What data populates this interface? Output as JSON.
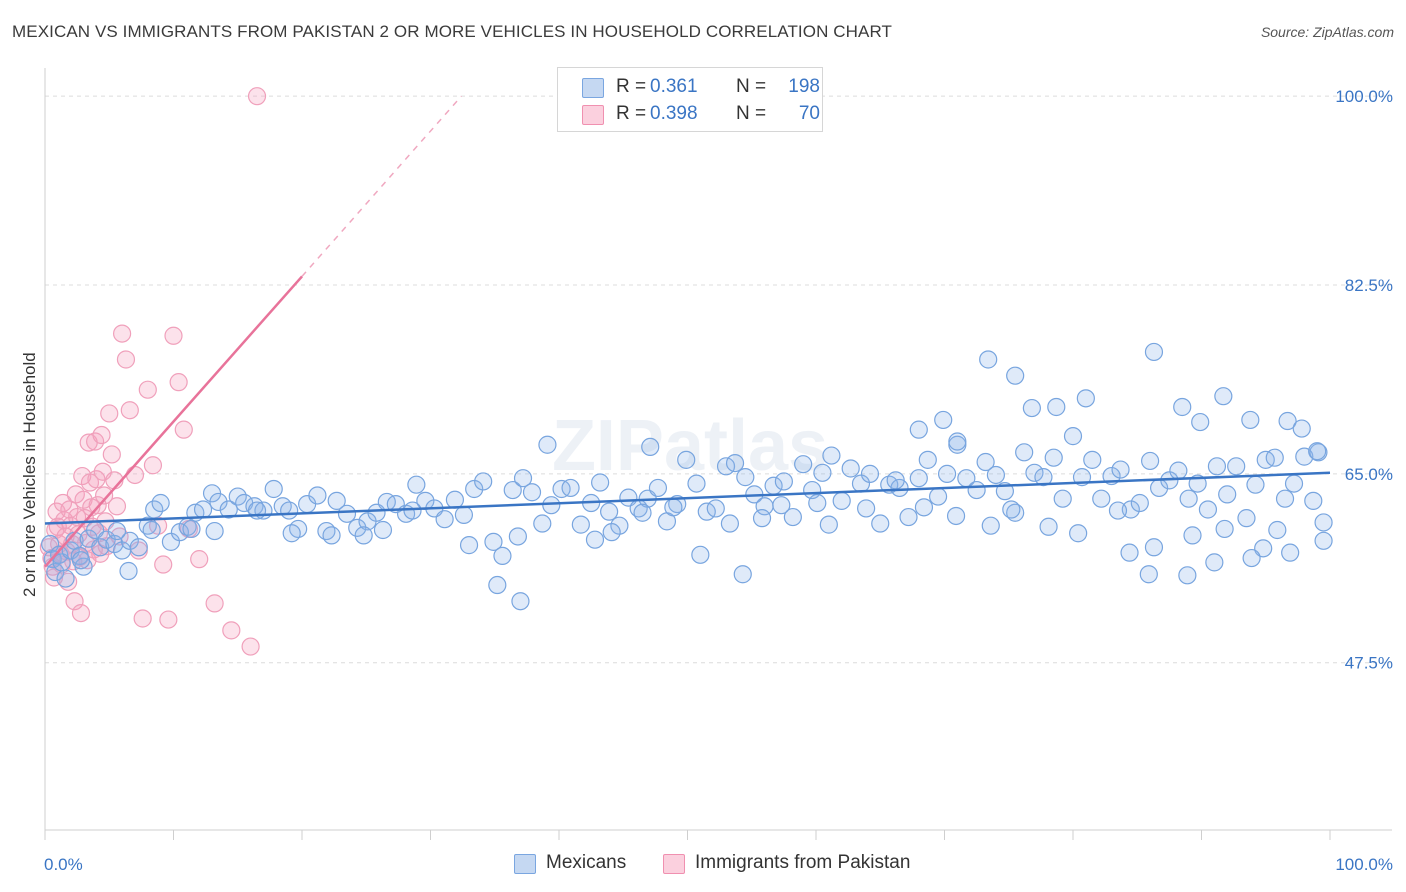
{
  "title": "MEXICAN VS IMMIGRANTS FROM PAKISTAN 2 OR MORE VEHICLES IN HOUSEHOLD CORRELATION CHART",
  "source": "Source: ZipAtlas.com",
  "watermark": "ZIPatlas",
  "legend": {
    "rows": [
      {
        "r_label": "R =",
        "r_value": "0.361",
        "n_label": "N =",
        "n_value": "198",
        "color": "#7aa6e0"
      },
      {
        "r_label": "R =",
        "r_value": "0.398",
        "n_label": "N =",
        "n_value": "70",
        "color": "#f090b0"
      }
    ]
  },
  "bottom_legend": [
    "Mexicans",
    "Immigrants from Pakistan"
  ],
  "colors": {
    "blue": "#3a75c4",
    "pink": "#e8739a",
    "grid": "#dddddd",
    "tick_label": "#3a75c4"
  },
  "chart_data": {
    "type": "scatter",
    "title": "MEXICAN VS IMMIGRANTS FROM PAKISTAN 2 OR MORE VEHICLES IN HOUSEHOLD CORRELATION CHART",
    "xlabel": "",
    "ylabel": "2 or more Vehicles in Household",
    "x_tick_labels": [
      "0.0%",
      "100.0%"
    ],
    "y_tick_labels": [
      "100.0%",
      "82.5%",
      "65.0%",
      "47.5%"
    ],
    "xlim": [
      0,
      100
    ],
    "ylim": [
      32,
      101.5
    ],
    "grid": true,
    "series": [
      {
        "name": "Mexicans",
        "R": 0.361,
        "N": 198,
        "trend": {
          "x": [
            0,
            100
          ],
          "y": [
            60.4,
            65.1
          ]
        },
        "points": [
          [
            0.4,
            58.5
          ],
          [
            0.6,
            57.1
          ],
          [
            0.8,
            55.9
          ],
          [
            1.1,
            57.5
          ],
          [
            1.3,
            56.8
          ],
          [
            1.6,
            55.3
          ],
          [
            2.0,
            57.9
          ],
          [
            2.3,
            58.8
          ],
          [
            2.7,
            57.4
          ],
          [
            3.0,
            56.4
          ],
          [
            3.4,
            59.0
          ],
          [
            3.9,
            59.8
          ],
          [
            4.3,
            58.2
          ],
          [
            4.8,
            58.9
          ],
          [
            5.4,
            58.5
          ],
          [
            6.0,
            57.9
          ],
          [
            6.6,
            58.8
          ],
          [
            7.3,
            58.2
          ],
          [
            8.0,
            60.2
          ],
          [
            8.5,
            61.7
          ],
          [
            9.0,
            62.3
          ],
          [
            9.8,
            58.7
          ],
          [
            10.5,
            59.6
          ],
          [
            11.1,
            60.1
          ],
          [
            11.7,
            61.4
          ],
          [
            12.3,
            61.7
          ],
          [
            13.0,
            63.2
          ],
          [
            13.5,
            62.4
          ],
          [
            14.3,
            61.7
          ],
          [
            15.0,
            62.9
          ],
          [
            15.5,
            62.3
          ],
          [
            16.3,
            62.0
          ],
          [
            17.0,
            61.6
          ],
          [
            17.8,
            63.6
          ],
          [
            18.5,
            62.0
          ],
          [
            19.0,
            61.6
          ],
          [
            19.7,
            59.9
          ],
          [
            20.4,
            62.2
          ],
          [
            21.2,
            63.0
          ],
          [
            21.9,
            59.7
          ],
          [
            22.7,
            62.5
          ],
          [
            23.5,
            61.3
          ],
          [
            24.3,
            60.0
          ],
          [
            25.1,
            60.6
          ],
          [
            25.8,
            61.4
          ],
          [
            26.6,
            62.4
          ],
          [
            27.3,
            62.2
          ],
          [
            28.1,
            61.3
          ],
          [
            28.9,
            64.0
          ],
          [
            29.6,
            62.5
          ],
          [
            30.3,
            61.8
          ],
          [
            31.1,
            60.8
          ],
          [
            31.9,
            62.6
          ],
          [
            32.6,
            61.2
          ],
          [
            33.4,
            63.6
          ],
          [
            34.1,
            64.3
          ],
          [
            34.9,
            58.7
          ],
          [
            35.6,
            57.4
          ],
          [
            36.4,
            63.5
          ],
          [
            37.2,
            64.6
          ],
          [
            37.9,
            63.3
          ],
          [
            38.7,
            60.4
          ],
          [
            39.4,
            62.1
          ],
          [
            40.2,
            63.6
          ],
          [
            40.9,
            63.7
          ],
          [
            41.7,
            60.3
          ],
          [
            42.5,
            62.3
          ],
          [
            43.2,
            64.2
          ],
          [
            43.9,
            61.5
          ],
          [
            44.7,
            60.2
          ],
          [
            45.4,
            62.8
          ],
          [
            46.2,
            61.8
          ],
          [
            46.9,
            62.7
          ],
          [
            47.7,
            63.7
          ],
          [
            48.4,
            60.6
          ],
          [
            49.2,
            62.2
          ],
          [
            49.9,
            66.3
          ],
          [
            50.7,
            64.1
          ],
          [
            51.5,
            61.5
          ],
          [
            52.2,
            61.8
          ],
          [
            53.0,
            65.7
          ],
          [
            53.7,
            66.0
          ],
          [
            54.5,
            64.7
          ],
          [
            55.2,
            63.1
          ],
          [
            56.0,
            62.0
          ],
          [
            56.7,
            63.9
          ],
          [
            57.5,
            64.3
          ],
          [
            58.2,
            61.0
          ],
          [
            59.0,
            65.9
          ],
          [
            59.7,
            63.5
          ],
          [
            60.5,
            65.1
          ],
          [
            61.2,
            66.7
          ],
          [
            62.0,
            62.5
          ],
          [
            62.7,
            65.5
          ],
          [
            63.5,
            64.1
          ],
          [
            64.2,
            65.0
          ],
          [
            65.0,
            60.4
          ],
          [
            65.7,
            64.0
          ],
          [
            66.5,
            63.7
          ],
          [
            67.2,
            61.0
          ],
          [
            68.0,
            64.6
          ],
          [
            68.7,
            66.3
          ],
          [
            69.5,
            62.9
          ],
          [
            70.2,
            65.0
          ],
          [
            71.0,
            67.7
          ],
          [
            71.7,
            64.6
          ],
          [
            72.5,
            63.5
          ],
          [
            73.2,
            66.1
          ],
          [
            74.0,
            64.9
          ],
          [
            74.7,
            63.4
          ],
          [
            75.5,
            61.4
          ],
          [
            76.2,
            67.0
          ],
          [
            77.0,
            65.1
          ],
          [
            77.7,
            64.7
          ],
          [
            78.5,
            66.5
          ],
          [
            79.2,
            62.7
          ],
          [
            80.0,
            68.5
          ],
          [
            80.7,
            64.7
          ],
          [
            81.5,
            66.3
          ],
          [
            82.2,
            62.7
          ],
          [
            83.0,
            64.8
          ],
          [
            83.7,
            65.4
          ],
          [
            84.5,
            61.7
          ],
          [
            85.2,
            62.3
          ],
          [
            86.0,
            66.2
          ],
          [
            86.7,
            63.7
          ],
          [
            87.5,
            64.4
          ],
          [
            88.2,
            65.3
          ],
          [
            89.0,
            62.7
          ],
          [
            89.7,
            64.1
          ],
          [
            90.5,
            61.7
          ],
          [
            91.2,
            65.7
          ],
          [
            92.0,
            63.1
          ],
          [
            92.7,
            65.7
          ],
          [
            93.5,
            60.9
          ],
          [
            94.2,
            64.0
          ],
          [
            95.0,
            66.3
          ],
          [
            95.7,
            66.5
          ],
          [
            96.5,
            62.7
          ],
          [
            97.2,
            64.1
          ],
          [
            98.0,
            66.6
          ],
          [
            98.7,
            62.5
          ],
          [
            99.1,
            67.0
          ],
          [
            5.6,
            59.7
          ],
          [
            8.3,
            59.8
          ],
          [
            11.4,
            59.9
          ],
          [
            13.2,
            59.7
          ],
          [
            16.5,
            61.6
          ],
          [
            19.2,
            59.5
          ],
          [
            22.3,
            59.3
          ],
          [
            24.8,
            59.3
          ],
          [
            26.3,
            59.8
          ],
          [
            28.6,
            61.6
          ],
          [
            33.0,
            58.4
          ],
          [
            36.8,
            59.2
          ],
          [
            42.8,
            58.9
          ],
          [
            44.1,
            59.6
          ],
          [
            46.5,
            61.4
          ],
          [
            48.9,
            61.9
          ],
          [
            51.0,
            57.5
          ],
          [
            53.3,
            60.4
          ],
          [
            55.8,
            60.9
          ],
          [
            57.3,
            62.1
          ],
          [
            60.1,
            62.3
          ],
          [
            63.9,
            61.8
          ],
          [
            66.2,
            64.4
          ],
          [
            68.4,
            61.9
          ],
          [
            70.9,
            61.1
          ],
          [
            73.6,
            60.2
          ],
          [
            75.2,
            61.7
          ],
          [
            78.1,
            60.1
          ],
          [
            80.4,
            59.5
          ],
          [
            83.5,
            61.6
          ],
          [
            86.3,
            58.2
          ],
          [
            89.3,
            59.3
          ],
          [
            91.8,
            59.9
          ],
          [
            94.8,
            58.1
          ],
          [
            96.9,
            57.7
          ],
          [
            99.5,
            60.5
          ],
          [
            35.2,
            54.7
          ],
          [
            37.0,
            53.2
          ],
          [
            54.3,
            55.7
          ],
          [
            61.0,
            60.3
          ],
          [
            68.0,
            69.1
          ],
          [
            69.9,
            70.0
          ],
          [
            71.0,
            68.0
          ],
          [
            73.4,
            75.6
          ],
          [
            75.5,
            74.1
          ],
          [
            76.8,
            71.1
          ],
          [
            78.7,
            71.2
          ],
          [
            81.0,
            72.0
          ],
          [
            86.3,
            76.3
          ],
          [
            88.5,
            71.2
          ],
          [
            89.9,
            69.8
          ],
          [
            91.7,
            72.2
          ],
          [
            93.8,
            70.0
          ],
          [
            96.7,
            69.9
          ],
          [
            97.8,
            69.2
          ],
          [
            99.0,
            67.1
          ],
          [
            91.0,
            56.8
          ],
          [
            84.4,
            57.7
          ],
          [
            85.9,
            55.7
          ],
          [
            88.9,
            55.6
          ],
          [
            93.9,
            57.2
          ],
          [
            95.9,
            59.8
          ],
          [
            99.5,
            58.8
          ],
          [
            2.8,
            57.0
          ],
          [
            6.5,
            56.0
          ],
          [
            47.1,
            67.5
          ],
          [
            39.1,
            67.7
          ]
        ]
      },
      {
        "name": "Immigrants from Pakistan",
        "R": 0.398,
        "N": 70,
        "trend": {
          "x": [
            0,
            20
          ],
          "y": [
            56.4,
            83.3
          ]
        },
        "trend_dashed": {
          "x": [
            20,
            32.4
          ],
          "y": [
            83.3,
            100.0
          ]
        },
        "points": [
          [
            0.3,
            58.2
          ],
          [
            0.5,
            57.2
          ],
          [
            0.6,
            56.4
          ],
          [
            0.7,
            55.4
          ],
          [
            0.8,
            59.8
          ],
          [
            0.9,
            61.5
          ],
          [
            1.0,
            60.1
          ],
          [
            1.1,
            58.5
          ],
          [
            1.2,
            57.6
          ],
          [
            1.3,
            56.6
          ],
          [
            1.4,
            62.3
          ],
          [
            1.5,
            60.7
          ],
          [
            1.6,
            59.2
          ],
          [
            1.7,
            57.8
          ],
          [
            1.8,
            55.0
          ],
          [
            1.9,
            61.7
          ],
          [
            2.0,
            60.2
          ],
          [
            2.1,
            58.5
          ],
          [
            2.2,
            56.9
          ],
          [
            2.3,
            53.2
          ],
          [
            2.4,
            63.1
          ],
          [
            2.5,
            61.0
          ],
          [
            2.6,
            59.4
          ],
          [
            2.7,
            57.3
          ],
          [
            2.8,
            52.1
          ],
          [
            2.9,
            64.8
          ],
          [
            3.0,
            62.6
          ],
          [
            3.1,
            60.9
          ],
          [
            3.2,
            58.6
          ],
          [
            3.3,
            57.0
          ],
          [
            3.4,
            67.9
          ],
          [
            3.5,
            64.2
          ],
          [
            3.6,
            61.9
          ],
          [
            3.7,
            60.1
          ],
          [
            3.8,
            58.0
          ],
          [
            3.9,
            68.0
          ],
          [
            4.0,
            64.5
          ],
          [
            4.1,
            62.1
          ],
          [
            4.2,
            59.5
          ],
          [
            4.3,
            57.6
          ],
          [
            4.4,
            68.6
          ],
          [
            4.5,
            65.2
          ],
          [
            4.6,
            63.0
          ],
          [
            4.7,
            60.6
          ],
          [
            4.8,
            58.3
          ],
          [
            5.0,
            70.6
          ],
          [
            5.2,
            66.8
          ],
          [
            5.4,
            64.4
          ],
          [
            5.6,
            62.0
          ],
          [
            5.8,
            59.2
          ],
          [
            6.0,
            78.0
          ],
          [
            6.3,
            75.6
          ],
          [
            6.6,
            70.9
          ],
          [
            7.0,
            64.9
          ],
          [
            7.3,
            57.9
          ],
          [
            7.6,
            51.6
          ],
          [
            8.0,
            72.8
          ],
          [
            8.4,
            65.8
          ],
          [
            8.8,
            60.2
          ],
          [
            9.2,
            56.6
          ],
          [
            9.6,
            51.5
          ],
          [
            10.0,
            77.8
          ],
          [
            10.4,
            73.5
          ],
          [
            10.8,
            69.1
          ],
          [
            11.2,
            59.9
          ],
          [
            12.0,
            57.1
          ],
          [
            13.2,
            53.0
          ],
          [
            14.5,
            50.5
          ],
          [
            16.0,
            49.0
          ],
          [
            16.5,
            100.0
          ]
        ]
      }
    ]
  }
}
